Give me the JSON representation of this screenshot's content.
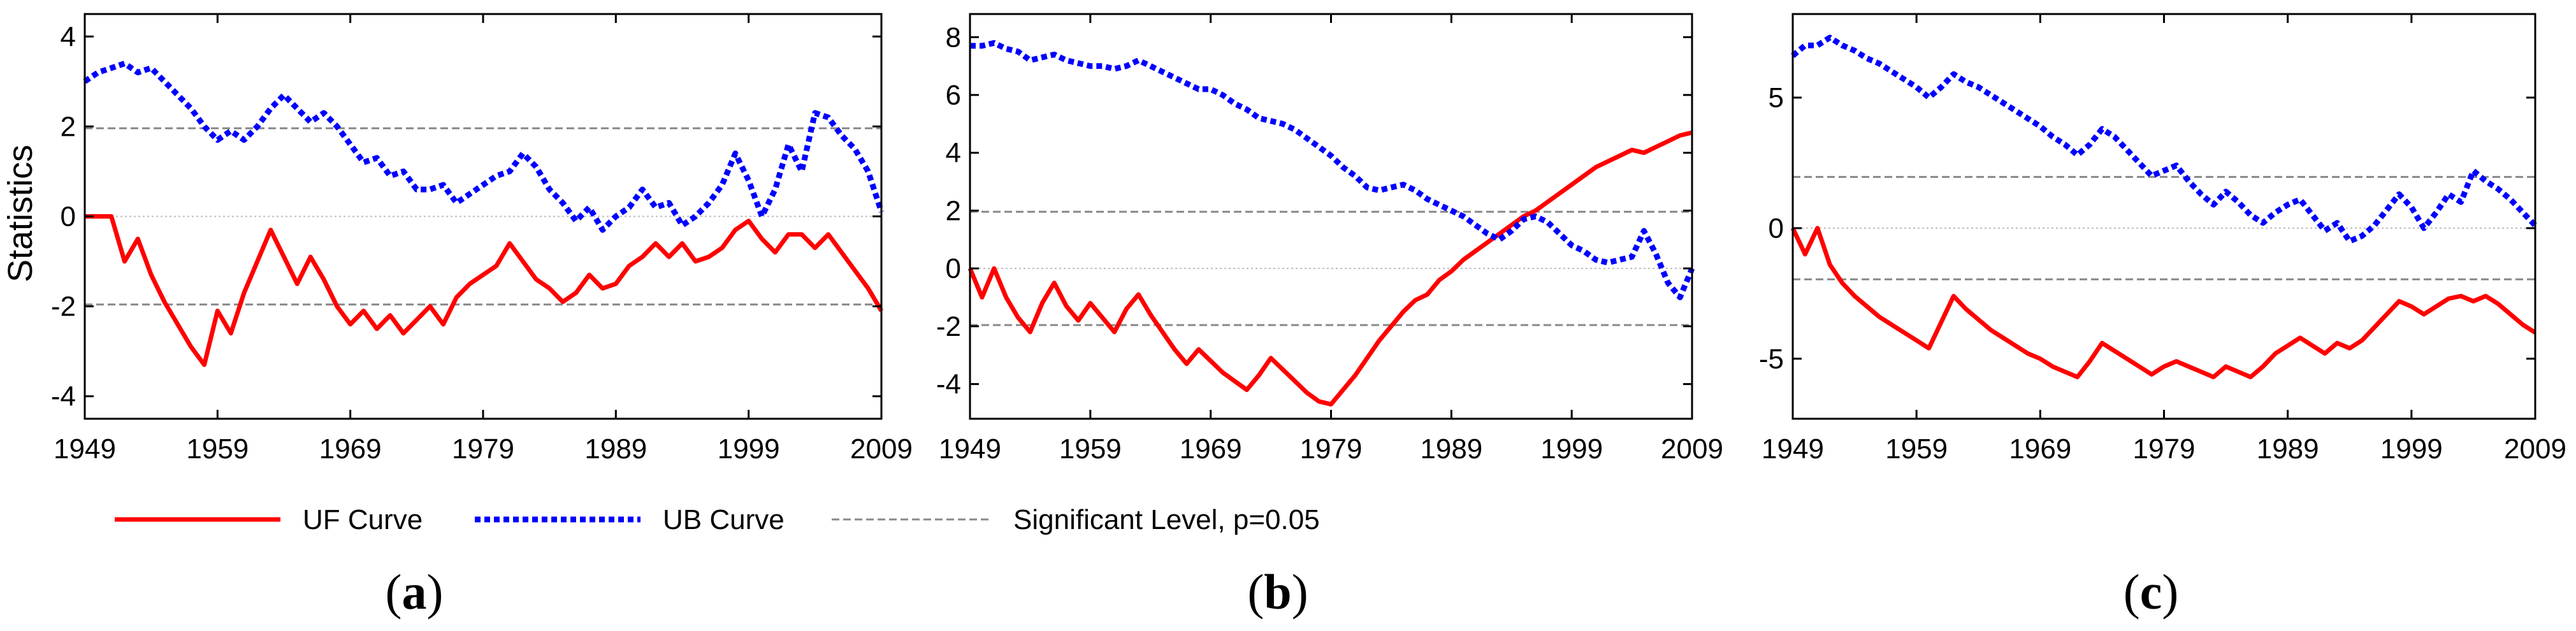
{
  "figure": {
    "ylabel": "Statistics",
    "legend": {
      "uf": "UF Curve",
      "ub": "UB Curve",
      "sig": "Significant Level, p=0.05"
    },
    "colors": {
      "uf": "#ff0000",
      "ub": "#0000ff",
      "sig": "#888888",
      "zero": "#bdbdbd"
    }
  },
  "chart_data": [
    {
      "type": "line",
      "panel_label": "a",
      "x_ticks": [
        "1949",
        "1959",
        "1969",
        "1979",
        "1989",
        "1999",
        "2009"
      ],
      "y_ticks": [
        "4",
        "2",
        "0",
        "-2",
        "-4"
      ],
      "xlim": [
        1949,
        2009
      ],
      "ylim": [
        -4.5,
        4.5
      ],
      "yticks_values": [
        4,
        2,
        0,
        -2,
        -4
      ],
      "significance": [
        1.96,
        -1.96
      ],
      "series": [
        {
          "name": "UF Curve",
          "x": [
            1949,
            1950,
            1951,
            1952,
            1953,
            1954,
            1955,
            1956,
            1957,
            1958,
            1959,
            1960,
            1961,
            1962,
            1963,
            1964,
            1965,
            1966,
            1967,
            1968,
            1969,
            1970,
            1971,
            1972,
            1973,
            1974,
            1975,
            1976,
            1977,
            1978,
            1979,
            1980,
            1981,
            1982,
            1983,
            1984,
            1985,
            1986,
            1987,
            1988,
            1989,
            1990,
            1991,
            1992,
            1993,
            1994,
            1995,
            1996,
            1997,
            1998,
            1999,
            2000,
            2001,
            2002,
            2003,
            2004,
            2005,
            2006,
            2007,
            2008,
            2009
          ],
          "values": [
            0,
            0,
            0,
            -1.0,
            -0.5,
            -1.3,
            -1.9,
            -2.4,
            -2.9,
            -3.3,
            -2.1,
            -2.6,
            -1.7,
            -1.0,
            -0.3,
            -0.9,
            -1.5,
            -0.9,
            -1.4,
            -2.0,
            -2.4,
            -2.1,
            -2.5,
            -2.2,
            -2.6,
            -2.3,
            -2.0,
            -2.4,
            -1.8,
            -1.5,
            -1.3,
            -1.1,
            -0.6,
            -1.0,
            -1.4,
            -1.6,
            -1.9,
            -1.7,
            -1.3,
            -1.6,
            -1.5,
            -1.1,
            -0.9,
            -0.6,
            -0.9,
            -0.6,
            -1.0,
            -0.9,
            -0.7,
            -0.3,
            -0.1,
            -0.5,
            -0.8,
            -0.4,
            -0.4,
            -0.7,
            -0.4,
            -0.8,
            -1.2,
            -1.6,
            -2.1
          ]
        },
        {
          "name": "UB Curve",
          "x": [
            1949,
            1950,
            1951,
            1952,
            1953,
            1954,
            1955,
            1956,
            1957,
            1958,
            1959,
            1960,
            1961,
            1962,
            1963,
            1964,
            1965,
            1966,
            1967,
            1968,
            1969,
            1970,
            1971,
            1972,
            1973,
            1974,
            1975,
            1976,
            1977,
            1978,
            1979,
            1980,
            1981,
            1982,
            1983,
            1984,
            1985,
            1986,
            1987,
            1988,
            1989,
            1990,
            1991,
            1992,
            1993,
            1994,
            1995,
            1996,
            1997,
            1998,
            1999,
            2000,
            2001,
            2002,
            2003,
            2004,
            2005,
            2006,
            2007,
            2008,
            2009
          ],
          "values": [
            3.0,
            3.2,
            3.3,
            3.4,
            3.2,
            3.3,
            3.0,
            2.7,
            2.4,
            2.0,
            1.7,
            1.9,
            1.7,
            2.0,
            2.4,
            2.7,
            2.4,
            2.1,
            2.3,
            2.0,
            1.6,
            1.2,
            1.3,
            0.9,
            1.0,
            0.6,
            0.6,
            0.7,
            0.3,
            0.5,
            0.7,
            0.9,
            1.0,
            1.4,
            1.1,
            0.6,
            0.3,
            -0.1,
            0.2,
            -0.3,
            0.0,
            0.2,
            0.6,
            0.2,
            0.3,
            -0.2,
            0.0,
            0.3,
            0.7,
            1.4,
            0.8,
            0.0,
            0.6,
            1.6,
            1.0,
            2.3,
            2.2,
            1.8,
            1.5,
            1.0,
            0.1
          ]
        }
      ]
    },
    {
      "type": "line",
      "panel_label": "b",
      "x_ticks": [
        "1949",
        "1959",
        "1969",
        "1979",
        "1989",
        "1999",
        "2009"
      ],
      "y_ticks": [
        "8",
        "6",
        "4",
        "2",
        "0",
        "-2",
        "-4"
      ],
      "xlim": [
        1949,
        2009
      ],
      "ylim": [
        -5.2,
        8.8
      ],
      "yticks_values": [
        8,
        6,
        4,
        2,
        0,
        -2,
        -4
      ],
      "significance": [
        1.96,
        -1.96
      ],
      "series": [
        {
          "name": "UF Curve",
          "x": [
            1949,
            1950,
            1951,
            1952,
            1953,
            1954,
            1955,
            1956,
            1957,
            1958,
            1959,
            1960,
            1961,
            1962,
            1963,
            1964,
            1965,
            1966,
            1967,
            1968,
            1969,
            1970,
            1971,
            1972,
            1973,
            1974,
            1975,
            1976,
            1977,
            1978,
            1979,
            1980,
            1981,
            1982,
            1983,
            1984,
            1985,
            1986,
            1987,
            1988,
            1989,
            1990,
            1991,
            1992,
            1993,
            1994,
            1995,
            1996,
            1997,
            1998,
            1999,
            2000,
            2001,
            2002,
            2003,
            2004,
            2005,
            2006,
            2007,
            2008,
            2009
          ],
          "values": [
            0,
            -1.0,
            0,
            -1.0,
            -1.7,
            -2.2,
            -1.2,
            -0.5,
            -1.3,
            -1.8,
            -1.2,
            -1.7,
            -2.2,
            -1.4,
            -0.9,
            -1.6,
            -2.2,
            -2.8,
            -3.3,
            -2.8,
            -3.2,
            -3.6,
            -3.9,
            -4.2,
            -3.7,
            -3.1,
            -3.5,
            -3.9,
            -4.3,
            -4.6,
            -4.7,
            -4.2,
            -3.7,
            -3.1,
            -2.5,
            -2.0,
            -1.5,
            -1.1,
            -0.9,
            -0.4,
            -0.1,
            0.3,
            0.6,
            0.9,
            1.2,
            1.5,
            1.8,
            2.0,
            2.3,
            2.6,
            2.9,
            3.2,
            3.5,
            3.7,
            3.9,
            4.1,
            4.0,
            4.2,
            4.4,
            4.6,
            4.7
          ]
        },
        {
          "name": "UB Curve",
          "x": [
            1949,
            1950,
            1951,
            1952,
            1953,
            1954,
            1955,
            1956,
            1957,
            1958,
            1959,
            1960,
            1961,
            1962,
            1963,
            1964,
            1965,
            1966,
            1967,
            1968,
            1969,
            1970,
            1971,
            1972,
            1973,
            1974,
            1975,
            1976,
            1977,
            1978,
            1979,
            1980,
            1981,
            1982,
            1983,
            1984,
            1985,
            1986,
            1987,
            1988,
            1989,
            1990,
            1991,
            1992,
            1993,
            1994,
            1995,
            1996,
            1997,
            1998,
            1999,
            2000,
            2001,
            2002,
            2003,
            2004,
            2005,
            2006,
            2007,
            2008,
            2009
          ],
          "values": [
            7.7,
            7.7,
            7.8,
            7.6,
            7.5,
            7.2,
            7.3,
            7.4,
            7.2,
            7.1,
            7.0,
            7.0,
            6.9,
            7.0,
            7.2,
            7.0,
            6.8,
            6.6,
            6.4,
            6.2,
            6.2,
            6.0,
            5.7,
            5.5,
            5.2,
            5.1,
            5.0,
            4.8,
            4.5,
            4.2,
            3.9,
            3.5,
            3.2,
            2.8,
            2.7,
            2.8,
            2.9,
            2.7,
            2.4,
            2.2,
            2.0,
            1.8,
            1.5,
            1.2,
            1.0,
            1.3,
            1.7,
            1.8,
            1.6,
            1.2,
            0.8,
            0.6,
            0.3,
            0.2,
            0.3,
            0.4,
            1.3,
            0.5,
            -0.5,
            -1.0,
            0.0
          ]
        }
      ]
    },
    {
      "type": "line",
      "panel_label": "c",
      "x_ticks": [
        "1949",
        "1959",
        "1969",
        "1979",
        "1989",
        "1999",
        "2009"
      ],
      "y_ticks": [
        "5",
        "0",
        "-5"
      ],
      "xlim": [
        1949,
        2009
      ],
      "ylim": [
        -7.3,
        8.2
      ],
      "yticks_values": [
        5,
        0,
        -5
      ],
      "significance": [
        1.96,
        -1.96
      ],
      "series": [
        {
          "name": "UF Curve",
          "x": [
            1949,
            1950,
            1951,
            1952,
            1953,
            1954,
            1955,
            1956,
            1957,
            1958,
            1959,
            1960,
            1961,
            1962,
            1963,
            1964,
            1965,
            1966,
            1967,
            1968,
            1969,
            1970,
            1971,
            1972,
            1973,
            1974,
            1975,
            1976,
            1977,
            1978,
            1979,
            1980,
            1981,
            1982,
            1983,
            1984,
            1985,
            1986,
            1987,
            1988,
            1989,
            1990,
            1991,
            1992,
            1993,
            1994,
            1995,
            1996,
            1997,
            1998,
            1999,
            2000,
            2001,
            2002,
            2003,
            2004,
            2005,
            2006,
            2007,
            2008,
            2009
          ],
          "values": [
            0,
            -1.0,
            0,
            -1.4,
            -2.1,
            -2.6,
            -3.0,
            -3.4,
            -3.7,
            -4.0,
            -4.3,
            -4.6,
            -3.6,
            -2.6,
            -3.1,
            -3.5,
            -3.9,
            -4.2,
            -4.5,
            -4.8,
            -5.0,
            -5.3,
            -5.5,
            -5.7,
            -5.1,
            -4.4,
            -4.7,
            -5.0,
            -5.3,
            -5.6,
            -5.3,
            -5.1,
            -5.3,
            -5.5,
            -5.7,
            -5.3,
            -5.5,
            -5.7,
            -5.3,
            -4.8,
            -4.5,
            -4.2,
            -4.5,
            -4.8,
            -4.4,
            -4.6,
            -4.3,
            -3.8,
            -3.3,
            -2.8,
            -3.0,
            -3.3,
            -3.0,
            -2.7,
            -2.6,
            -2.8,
            -2.6,
            -2.9,
            -3.3,
            -3.7,
            -4.0
          ]
        },
        {
          "name": "UB Curve",
          "x": [
            1949,
            1950,
            1951,
            1952,
            1953,
            1954,
            1955,
            1956,
            1957,
            1958,
            1959,
            1960,
            1961,
            1962,
            1963,
            1964,
            1965,
            1966,
            1967,
            1968,
            1969,
            1970,
            1971,
            1972,
            1973,
            1974,
            1975,
            1976,
            1977,
            1978,
            1979,
            1980,
            1981,
            1982,
            1983,
            1984,
            1985,
            1986,
            1987,
            1988,
            1989,
            1990,
            1991,
            1992,
            1993,
            1994,
            1995,
            1996,
            1997,
            1998,
            1999,
            2000,
            2001,
            2002,
            2003,
            2004,
            2005,
            2006,
            2007,
            2008,
            2009
          ],
          "values": [
            6.6,
            7.0,
            7.0,
            7.3,
            7.0,
            6.8,
            6.5,
            6.3,
            6.0,
            5.7,
            5.4,
            5.0,
            5.4,
            5.9,
            5.6,
            5.4,
            5.1,
            4.8,
            4.5,
            4.2,
            3.9,
            3.5,
            3.2,
            2.8,
            3.2,
            3.8,
            3.5,
            3.0,
            2.5,
            2.0,
            2.2,
            2.4,
            1.8,
            1.3,
            0.9,
            1.4,
            1.0,
            0.5,
            0.2,
            0.6,
            0.9,
            1.1,
            0.5,
            -0.1,
            0.2,
            -0.5,
            -0.3,
            0.1,
            0.7,
            1.3,
            0.8,
            0.0,
            0.6,
            1.3,
            1.0,
            2.2,
            1.8,
            1.5,
            1.1,
            0.6,
            0.1
          ]
        }
      ]
    }
  ]
}
